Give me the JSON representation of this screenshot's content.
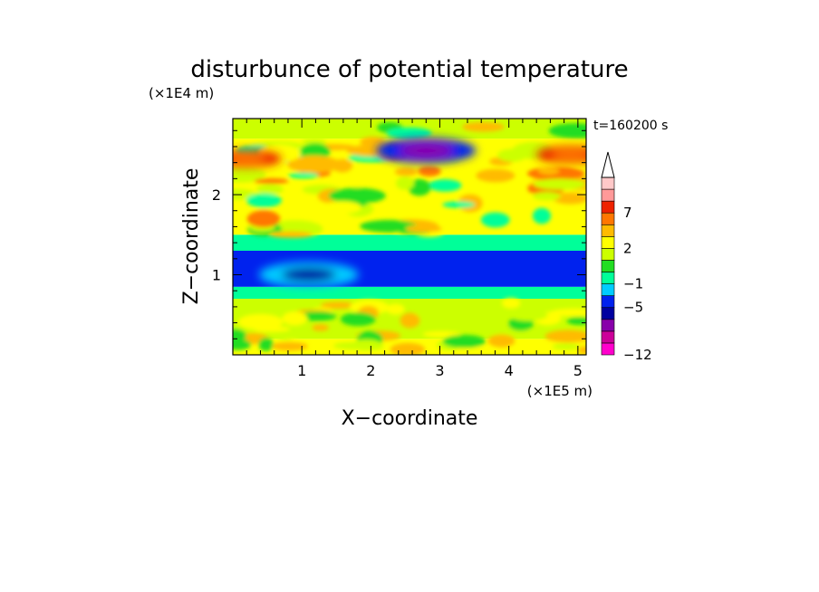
{
  "chart_data": {
    "type": "heatmap",
    "title": "disturbunce of potential temperature",
    "xlabel": "X−coordinate",
    "ylabel": "Z−coordinate",
    "x_scale_label": "(×1E5 m)",
    "y_scale_label": "(×1E4 m)",
    "time_label": "t=160200 s",
    "xlim": [
      0,
      5.12
    ],
    "ylim": [
      0,
      2.95
    ],
    "x_ticks": [
      1,
      2,
      3,
      4,
      5
    ],
    "y_ticks": [
      1,
      2
    ],
    "colorbar": {
      "tick_labels": [
        "7",
        "2",
        "−1",
        "−5",
        "−12"
      ],
      "levels": [
        -12,
        -10,
        -8,
        -6,
        -5,
        -3,
        -1,
        0,
        1,
        2,
        3,
        5,
        7,
        9,
        11,
        13
      ],
      "colors": [
        "#ff00cc",
        "#cc0099",
        "#8800aa",
        "#0000a0",
        "#0022ee",
        "#00ccff",
        "#00ff99",
        "#22dd22",
        "#ccff00",
        "#ffff00",
        "#ffbb00",
        "#ff7700",
        "#ee2200",
        "#ff9999",
        "#ffc8c8"
      ],
      "extend": "max"
    },
    "bands": [
      {
        "z": [
          0.0,
          0.2
        ],
        "value": 2,
        "note": "near-surface yellow/green cells"
      },
      {
        "z": [
          0.2,
          0.7
        ],
        "value": 1
      },
      {
        "z": [
          0.7,
          0.85
        ],
        "value": -1
      },
      {
        "z": [
          0.85,
          1.3
        ],
        "value": -5
      },
      {
        "z": [
          1.3,
          1.5
        ],
        "value": -1
      },
      {
        "z": [
          1.5,
          2.7
        ],
        "value": 2
      },
      {
        "z": [
          2.7,
          2.95
        ],
        "value": 1
      }
    ],
    "features": [
      {
        "x": 2.8,
        "z": 2.55,
        "value": -8
      },
      {
        "x": 0.2,
        "z": 2.45,
        "value": 5
      },
      {
        "x": 4.9,
        "z": 2.5,
        "value": 5
      },
      {
        "x": 1.1,
        "z": 1.0,
        "value": -6
      }
    ]
  }
}
